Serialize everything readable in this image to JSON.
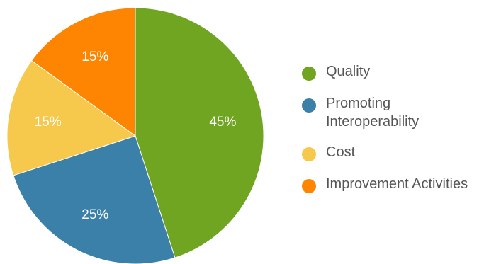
{
  "chart_data": {
    "type": "pie",
    "categories": [
      "Quality",
      "Promoting Interoperability",
      "Cost",
      "Improvement Activities"
    ],
    "values": [
      45,
      25,
      15,
      15
    ],
    "value_labels": [
      "45%",
      "25%",
      "15%",
      "15%"
    ],
    "colors": [
      "#6fa520",
      "#3a80a8",
      "#f6c94c",
      "#fd8501"
    ],
    "legend_placement": "right"
  },
  "legend": {
    "items": [
      {
        "label": "Quality"
      },
      {
        "label_line1": "Promoting",
        "label_line2": "Interoperability"
      },
      {
        "label": "Cost"
      },
      {
        "label": "Improvement Activities"
      }
    ]
  }
}
